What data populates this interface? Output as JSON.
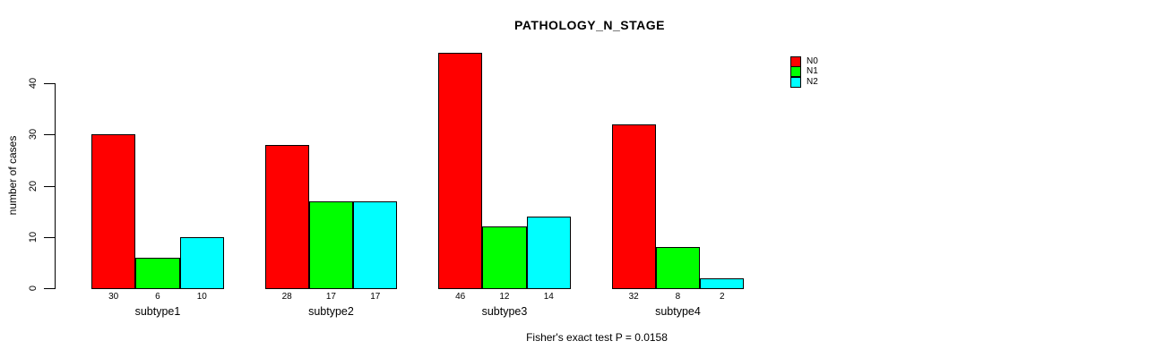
{
  "chart_data": {
    "type": "bar",
    "title": "PATHOLOGY_N_STAGE",
    "ylabel": "number of cases",
    "xlabel": "",
    "footer": "Fisher's exact test P = 0.0158",
    "categories": [
      "subtype1",
      "subtype2",
      "subtype3",
      "subtype4"
    ],
    "series": [
      {
        "name": "N0",
        "color": "#ff0000",
        "values": [
          30,
          28,
          46,
          32
        ]
      },
      {
        "name": "N1",
        "color": "#00ff00",
        "values": [
          6,
          17,
          12,
          8
        ]
      },
      {
        "name": "N2",
        "color": "#00ffff",
        "values": [
          10,
          17,
          14,
          2
        ]
      }
    ],
    "bar_value_labels": [
      [
        30,
        6,
        10
      ],
      [
        28,
        17,
        17
      ],
      [
        46,
        12,
        14
      ],
      [
        32,
        8,
        2
      ]
    ],
    "y_ticks": [
      0,
      10,
      20,
      30,
      40
    ],
    "ylim": [
      0,
      46
    ],
    "grid": false,
    "legend_position": "top-right",
    "bar_border_color": "#000000",
    "background_color": "#ffffff"
  }
}
